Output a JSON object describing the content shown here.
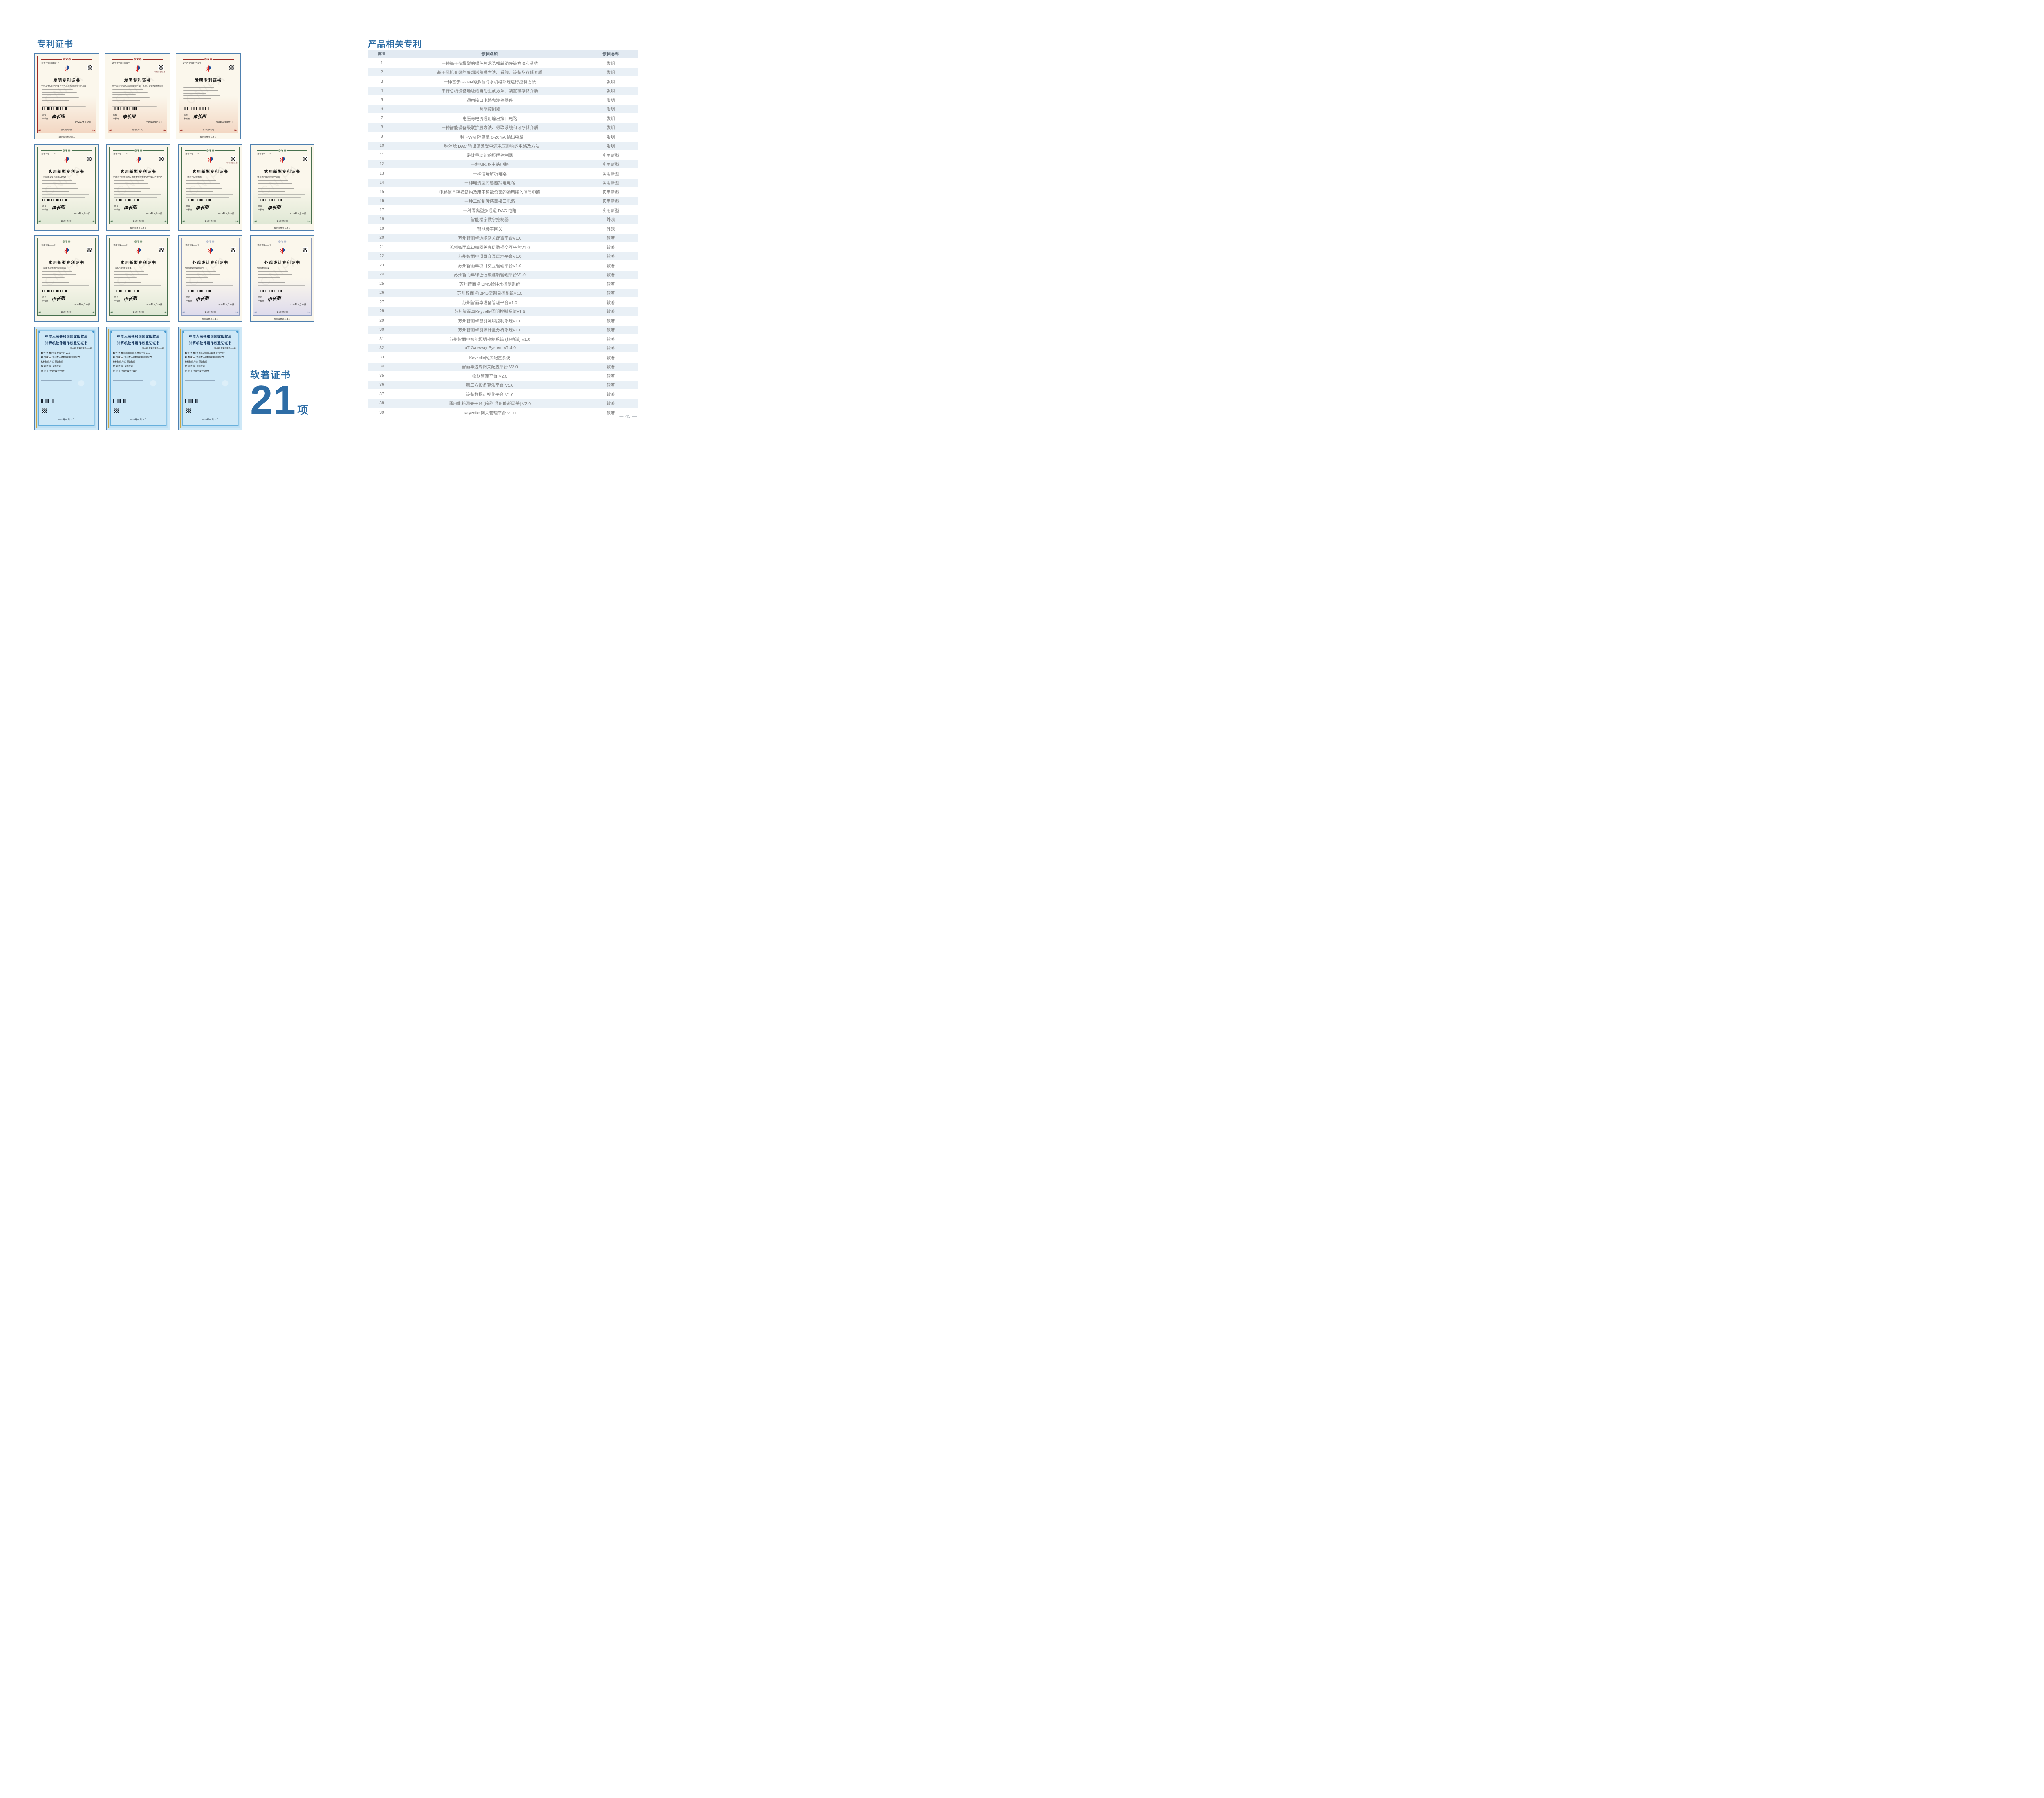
{
  "page": {
    "number": "— 43 —"
  },
  "left": {
    "title": "专利证书",
    "soft_stats": {
      "label": "软著证书",
      "count": "21",
      "unit": "项"
    },
    "cert_rows": [
      {
        "certs": [
          {
            "type": "patent",
            "theme": "red",
            "title": "发明专利证书",
            "cert_no": "证书号第6661534号",
            "name": "一种基于GRNN的多台冷水机组系统运行控制方法",
            "director_label": "局长",
            "director_name": "申长雨",
            "signature": "申长雨",
            "date": "2024年01月30日",
            "page_line": "第1页(共2页)",
            "footer": "其他事项参见续页",
            "qr_caption": null
          },
          {
            "type": "patent",
            "theme": "red",
            "title": "发明专利证书",
            "cert_no": "证书号第8000883号",
            "name": "基于风机变频的冷却塔降噪方法、系统、设备及存储介质",
            "director_label": "局长",
            "director_name": "申长雨",
            "signature": "申长雨",
            "date": "2025年06月13日",
            "page_line": "第1页(共1页)",
            "footer": null,
            "qr_caption": "专利公告信息"
          },
          {
            "type": "patent",
            "theme": "red",
            "title": "发明专利证书",
            "cert_no": "证书号第6817761号",
            "name": null,
            "director_label": "局长",
            "director_name": "申长雨",
            "signature": "申长雨",
            "date": "2024年03月22日",
            "page_line": "第1页(共2页)",
            "footer": "其他事项参见续页",
            "qr_caption": null
          }
        ]
      },
      {
        "certs": [
          {
            "type": "patent",
            "theme": "green",
            "title": "实用新型专利证书",
            "cert_no": "证书号第——号",
            "name": "一种隔离型多通道DAC电路",
            "director_label": "局长",
            "director_name": "申长雨",
            "signature": "申长雨",
            "date": "2025年06月03日",
            "page_line": "第1页(共1页)",
            "footer": null,
            "qr_caption": null
          },
          {
            "type": "patent",
            "theme": "green",
            "title": "实用新型专利证书",
            "cert_no": "证书号第——号",
            "name": "电路信号转换结构及用于智能仪表的通用接入信号电路",
            "director_label": "局长",
            "director_name": "申长雨",
            "signature": "申长雨",
            "date": "2024年04月02日",
            "page_line": "第1页(共2页)",
            "footer": "其他事项参见续页",
            "qr_caption": null
          },
          {
            "type": "patent",
            "theme": "green",
            "title": "实用新型专利证书",
            "cert_no": "证书号第——号",
            "name": "一种信号解析电路",
            "director_label": "局长",
            "director_name": "申长雨",
            "signature": "申长雨",
            "date": "2024年07月09日",
            "page_line": "第1页(共1页)",
            "footer": null,
            "qr_caption": "专利公告信息"
          },
          {
            "type": "patent",
            "theme": "green",
            "title": "实用新型专利证书",
            "cert_no": "证书号第——号",
            "name": "带计量功能的照明控制器",
            "director_label": "局长",
            "director_name": "申长雨",
            "signature": "申长雨",
            "date": "2023年11月22日",
            "page_line": "第1页(共2页)",
            "footer": "其他事项参见续页",
            "qr_caption": null
          }
        ]
      },
      {
        "certs": [
          {
            "type": "patent",
            "theme": "green",
            "title": "实用新型专利证书",
            "cert_no": "证书号第——号",
            "name": "一种电流型传感器授电电路",
            "director_label": "局长",
            "director_name": "申长雨",
            "signature": "申长雨",
            "date": "2024年10月15日",
            "page_line": "第1页(共1页)",
            "footer": null,
            "qr_caption": null
          },
          {
            "type": "patent",
            "theme": "green",
            "title": "实用新型专利证书",
            "cert_no": "证书号第——号",
            "name": "一种MBUS主站电路",
            "director_label": "局长",
            "director_name": "申长雨",
            "signature": "申长雨",
            "date": "2024年09月03日",
            "page_line": "第1页(共1页)",
            "footer": null,
            "qr_caption": null
          },
          {
            "type": "patent",
            "theme": "design",
            "title": "外观设计专利证书",
            "cert_no": "证书号第——号",
            "name": "智能楼宇数字控制器",
            "director_label": "局长",
            "director_name": "申长雨",
            "signature": "申长雨",
            "date": "2024年04月16日",
            "page_line": "第1页(共2页)",
            "footer": "其他事项参见续页",
            "qr_caption": null
          },
          {
            "type": "patent",
            "theme": "design",
            "title": "外观设计专利证书",
            "cert_no": "证书号第——号",
            "name": "智能楼宇网关",
            "director_label": "局长",
            "director_name": "申长雨",
            "signature": "申长雨",
            "date": "2024年04月16日",
            "page_line": "第1页(共2页)",
            "footer": "其他事项参见续页",
            "qr_caption": null
          }
        ]
      },
      {
        "certs": [
          {
            "type": "software",
            "header1": "中华人民共和国国家版权局",
            "header2": "计算机软件著作权登记证书",
            "name_label": "软 件 名 称:",
            "name": "物联管理平台 V2.0",
            "owner_label": "著 作 权 人:",
            "owner": "苏州智而卓数字科技有限公司",
            "mode_label": "权利取得方式:",
            "mode": "原始取得",
            "scope_label": "权 利 范 围:",
            "scope": "全部权利",
            "reg_label": "登  记  号:",
            "reg": "2025SR1208817",
            "date": "2025年07月09日"
          },
          {
            "type": "software",
            "header1": "中华人民共和国国家版权局",
            "header2": "计算机软件著作权登记证书",
            "name_label": "软 件 名 称:",
            "name": "Keyzelle网关管理平台 V1.0",
            "owner_label": "著 作 权 人:",
            "owner": "苏州智而卓数字科技有限公司",
            "mode_label": "权利取得方式:",
            "mode": "原始取得",
            "scope_label": "权 利 范 围:",
            "scope": "全部权利",
            "reg_label": "登  记  号:",
            "reg": "2025SR1179477",
            "date": "2025年07月07日"
          },
          {
            "type": "software",
            "header1": "中华人民共和国国家版权局",
            "header2": "计算机软件著作权登记证书",
            "name_label": "软 件 名 称:",
            "name": "智而卓边缘网关配置平台 V2.0",
            "owner_label": "著 作 权 人:",
            "owner": "苏州智而卓数字科技有限公司",
            "mode_label": "权利取得方式:",
            "mode": "原始取得",
            "scope_label": "权 利 范 围:",
            "scope": "全部权利",
            "reg_label": "登  记  号:",
            "reg": "2025SR1207251",
            "date": "2025年07月08日"
          }
        ]
      }
    ]
  },
  "right": {
    "title": "产品相关专利",
    "table": {
      "headers": [
        "序号",
        "专利名称",
        "专利类型"
      ],
      "rows": [
        [
          "1",
          "一种基于多模型的绿色技术选择辅助决策方法和系统",
          "发明"
        ],
        [
          "2",
          "基于风机变频的冷却塔降噪方法、系统、设备及存储介质",
          "发明"
        ],
        [
          "3",
          "一种基于GRNN的多台冷水机组系统运行控制方法",
          "发明"
        ],
        [
          "4",
          "串行总线设备地址的自动生成方法、装置和存储介质",
          "发明"
        ],
        [
          "5",
          "通用接口电路和测控器件",
          "发明"
        ],
        [
          "6",
          "照明控制器",
          "发明"
        ],
        [
          "7",
          "电压与电流通用输出接口电路",
          "发明"
        ],
        [
          "8",
          "一种智能设备级联扩展方法、级联系统和可存储介质",
          "发明"
        ],
        [
          "9",
          "一种 PWM 隔离型 0-20mA 输出电路",
          "发明"
        ],
        [
          "10",
          "一种消除 DAC 输出偏差受电源电压影响的电路及方法",
          "发明"
        ],
        [
          "11",
          "带计量功能的照明控制器",
          "实用新型"
        ],
        [
          "12",
          "一种MBUS主站电路",
          "实用新型"
        ],
        [
          "13",
          "一种信号解析电路",
          "实用新型"
        ],
        [
          "14",
          "一种电流型传感器授电电路",
          "实用新型"
        ],
        [
          "15",
          "电路信号转换结构及用于智能仪表的通用接入信号电路",
          "实用新型"
        ],
        [
          "16",
          "一种二线制传感器接口电路",
          "实用新型"
        ],
        [
          "17",
          "一种隔离型多通道 DAC 电路",
          "实用新型"
        ],
        [
          "18",
          "智能楼宇数字控制器",
          "外观"
        ],
        [
          "19",
          "智能楼宇网关",
          "外观"
        ],
        [
          "20",
          "苏州智而卓边缘网关配置平台V1.0",
          "软著"
        ],
        [
          "21",
          "苏州智而卓边缘网关底层数据交互平台V1.0",
          "软著"
        ],
        [
          "22",
          "苏州智而卓项目交互展示平台V1.0",
          "软著"
        ],
        [
          "23",
          "苏州智而卓项目交互管理平台V1.0",
          "软著"
        ],
        [
          "24",
          "苏州智而卓绿色低碳建筑管理平台V1.0",
          "软著"
        ],
        [
          "25",
          "苏州智而卓IBMS给排水控制系统",
          "软著"
        ],
        [
          "26",
          "苏州智而卓IBMS空调自控系统V1.0",
          "软著"
        ],
        [
          "27",
          "苏州智而卓设备管理平台V1.0",
          "软著"
        ],
        [
          "28",
          "苏州智而卓Keyzelle照明控制系统V1.0",
          "软著"
        ],
        [
          "29",
          "苏州智而卓智能照明控制系统V1.0",
          "软著"
        ],
        [
          "30",
          "苏州智而卓能源计量分析系统V1.0",
          "软著"
        ],
        [
          "31",
          "苏州智而卓智能照明控制系统 (移动端) V1.0",
          "软著"
        ],
        [
          "32",
          "IoT Gateway System V1.4.0",
          "软著"
        ],
        [
          "33",
          "Keyzelle网关配置系统",
          "软著"
        ],
        [
          "34",
          "智而卓边缘网关配置平台 V2.0",
          "软著"
        ],
        [
          "35",
          "物联管理平台 V2.0",
          "软著"
        ],
        [
          "36",
          "第三方设备算法平台 V1.0",
          "软著"
        ],
        [
          "37",
          "设备数据可视化平台 V1.0",
          "软著"
        ],
        [
          "38",
          "通用能耗网关平台 [简称:通用能耗网关] V2.0",
          "软著"
        ],
        [
          "39",
          "Keyzelle 网关管理平台 V1.0",
          "软著"
        ]
      ]
    }
  }
}
